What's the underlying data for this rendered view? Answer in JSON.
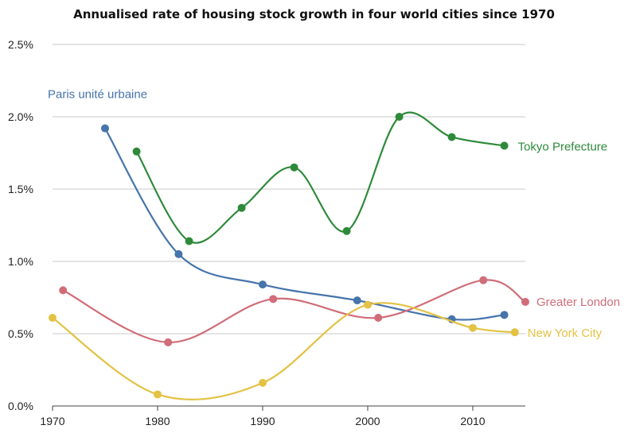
{
  "chart_data": {
    "type": "line",
    "title": "Annualised rate of housing stock growth in four world cities since 1970",
    "xlabel": "",
    "ylabel": "",
    "xlim": [
      1970,
      2015
    ],
    "ylim": [
      0,
      2.5
    ],
    "x_ticks": [
      1970,
      1980,
      1990,
      2000,
      2010
    ],
    "x_tick_labels": [
      "1970",
      "1980",
      "1990",
      "2000",
      "2010"
    ],
    "y_ticks": [
      0,
      0.5,
      1.0,
      1.5,
      2.0,
      2.5
    ],
    "y_tick_labels": [
      "0.0%",
      "0.5%",
      "1.0%",
      "1.5%",
      "2.0%",
      "2.5%"
    ],
    "grid": true,
    "legend": "inline labels",
    "series": [
      {
        "name": "Paris unité urbaine",
        "color": "#4674ab",
        "points": [
          [
            1975,
            1.92
          ],
          [
            1982,
            1.05
          ],
          [
            1990,
            0.84
          ],
          [
            1999,
            0.73
          ],
          [
            2008,
            0.6
          ],
          [
            2013,
            0.63
          ]
        ]
      },
      {
        "name": "Tokyo Prefecture",
        "color": "#2e8a3a",
        "points": [
          [
            1978,
            1.76
          ],
          [
            1983,
            1.14
          ],
          [
            1988,
            1.37
          ],
          [
            1993,
            1.65
          ],
          [
            1998,
            1.21
          ],
          [
            2003,
            2.0
          ],
          [
            2008,
            1.86
          ],
          [
            2013,
            1.8
          ]
        ]
      },
      {
        "name": "Greater London",
        "color": "#d06d78",
        "points": [
          [
            1971,
            0.8
          ],
          [
            1981,
            0.44
          ],
          [
            1991,
            0.74
          ],
          [
            2001,
            0.61
          ],
          [
            2011,
            0.87
          ],
          [
            2015,
            0.72
          ]
        ]
      },
      {
        "name": "New York City",
        "color": "#e3c244",
        "points": [
          [
            1970,
            0.61
          ],
          [
            1980,
            0.08
          ],
          [
            1990,
            0.16
          ],
          [
            2000,
            0.7
          ],
          [
            2010,
            0.54
          ],
          [
            2014,
            0.51
          ]
        ]
      }
    ]
  }
}
